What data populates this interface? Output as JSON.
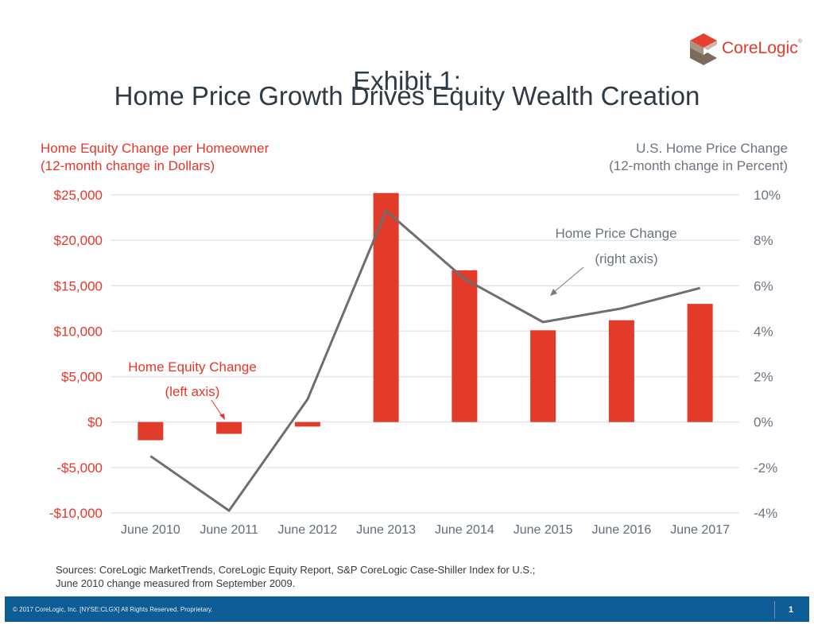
{
  "header": {
    "title_line1": "Exhibit 1:",
    "title_line2": "Home Price Growth Drives Equity Wealth Creation",
    "logo_text": "CoreLogic",
    "logo_mark": "®"
  },
  "chart_data": {
    "type": "bar+line",
    "title": "Home Price Growth Drives Equity Wealth Creation",
    "categories": [
      "June 2010",
      "June 2011",
      "June 2012",
      "June 2013",
      "June 2014",
      "June 2015",
      "June 2016",
      "June 2017"
    ],
    "left_axis": {
      "label_line1": "Home Equity Change per Homeowner",
      "label_line2": "(12-month change in Dollars)",
      "ylim": [
        -10000,
        25000
      ],
      "ticks": [
        25000,
        20000,
        15000,
        10000,
        5000,
        0,
        -5000,
        -10000
      ],
      "tick_labels": [
        "$25,000",
        "$20,000",
        "$15,000",
        "$10,000",
        "$5,000",
        "$0",
        "-$5,000",
        "-$10,000"
      ]
    },
    "right_axis": {
      "label_line1": "U.S. Home Price Change",
      "label_line2": "(12-month change in Percent)",
      "ylim": [
        -4,
        10
      ],
      "ticks": [
        10,
        8,
        6,
        4,
        2,
        0,
        -2,
        -4
      ],
      "tick_labels": [
        "10%",
        "8%",
        "6%",
        "4%",
        "2%",
        "0%",
        "-2%",
        "-4%"
      ]
    },
    "series": [
      {
        "name": "Home Equity Change",
        "type": "bar",
        "axis": "left",
        "color": "#e23b2a",
        "values": [
          -2000,
          -1300,
          -500,
          25200,
          16700,
          10100,
          11200,
          13000
        ]
      },
      {
        "name": "Home Price Change",
        "type": "line",
        "axis": "right",
        "color": "#6e6e6e",
        "values": [
          -1.5,
          -3.9,
          1.0,
          9.3,
          6.3,
          4.4,
          5.0,
          5.9
        ]
      }
    ],
    "annotations": {
      "bar_label_line1": "Home Equity Change",
      "bar_label_line2": "(left axis)",
      "line_label_line1": "Home Price Change",
      "line_label_line2": "(right axis)"
    },
    "grid": true,
    "colors": {
      "left_axis_text": "#e8352a",
      "right_axis_text": "#6b7480",
      "category_text": "#5f6d7c",
      "gridline": "#e6e6e6"
    }
  },
  "sources": {
    "line1": "Sources: CoreLogic MarketTrends,  CoreLogic Equity Report, S&P CoreLogic Case-Shiller Index for U.S.;",
    "line2": "June 2010 change measured from September 2009."
  },
  "footer": {
    "copyright": "© 2017 CoreLogic, Inc. [NYSE:CLGX]  All Rights Reserved.   Proprietary.",
    "page_number": "1",
    "background": "#0e5c95"
  }
}
